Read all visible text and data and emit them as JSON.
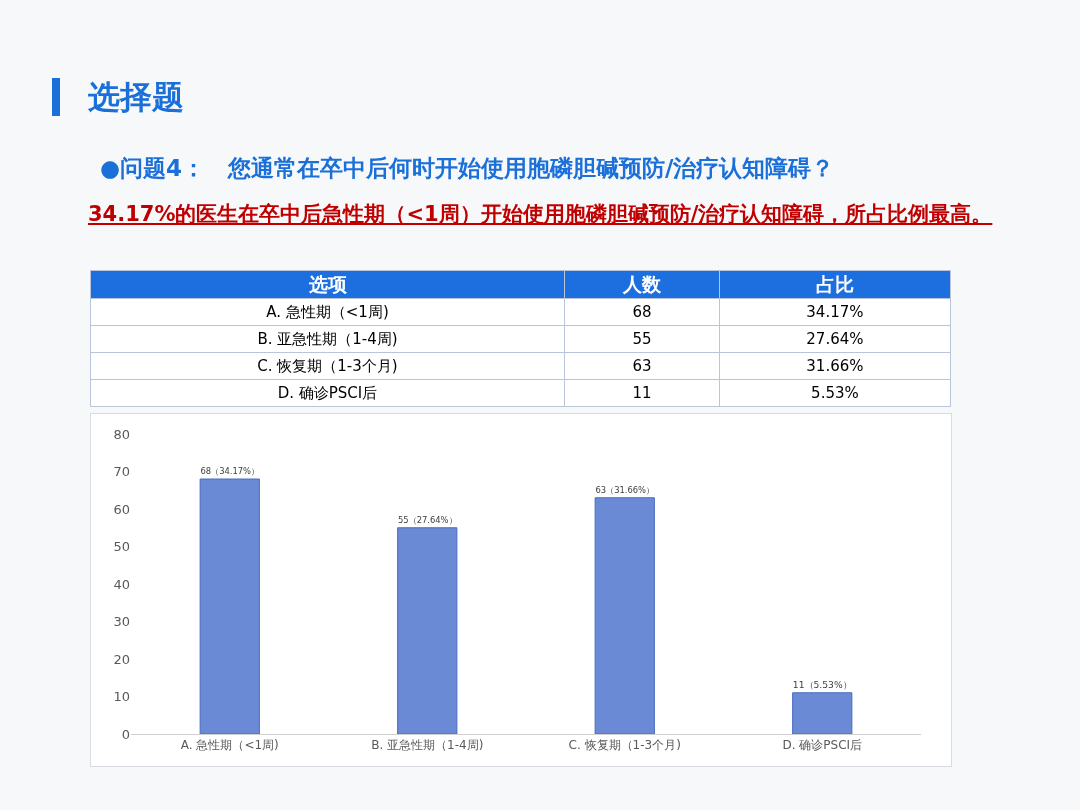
{
  "chart_data": [
    {
      "type": "other",
      "title": "选择题",
      "subtitle": "●问题4：　您通常在卒中后何时开始使用胞磷胆碱预防/治疗认知障碍？",
      "annotations": [
        "34.17%的医生在卒中后急性期（<1周）开始使用胞磷胆碱预防/治疗认知障碍，所占比例最高。"
      ],
      "legend_title": "选项",
      "data_labels": true,
      "categories": [
        "A. 急性期（<1周)",
        "B. 亚急性期（1-4周)",
        "C. 恢复期（1-3个月)",
        "D. 确诊PSCI后"
      ],
      "series": [
        {
          "name": "人数",
          "values": [
            68,
            55,
            63,
            11
          ]
        },
        {
          "name": "占比",
          "values": [
            34.17,
            27.64,
            31.66,
            5.53
          ],
          "value_labels": [
            "34.17%",
            "27.64%",
            "31.66%",
            "5.53%"
          ]
        }
      ]
    },
    {
      "type": "bar",
      "categories": [
        "A. 急性期（<1周)",
        "B. 亚急性期（1-4周)",
        "C. 恢复期（1-3个月)",
        "D. 确诊PSCI后"
      ],
      "values": [
        68,
        55,
        63,
        11
      ],
      "color": "#6a8ad6",
      "value_labels": [
        "68（34.17%）",
        "55（27.64%）",
        "63（31.66%）",
        "11（5.53%）"
      ],
      "ylim": [
        0,
        80
      ],
      "yticks": [
        0,
        10,
        20,
        30,
        40,
        50,
        60,
        70,
        80
      ]
    }
  ]
}
